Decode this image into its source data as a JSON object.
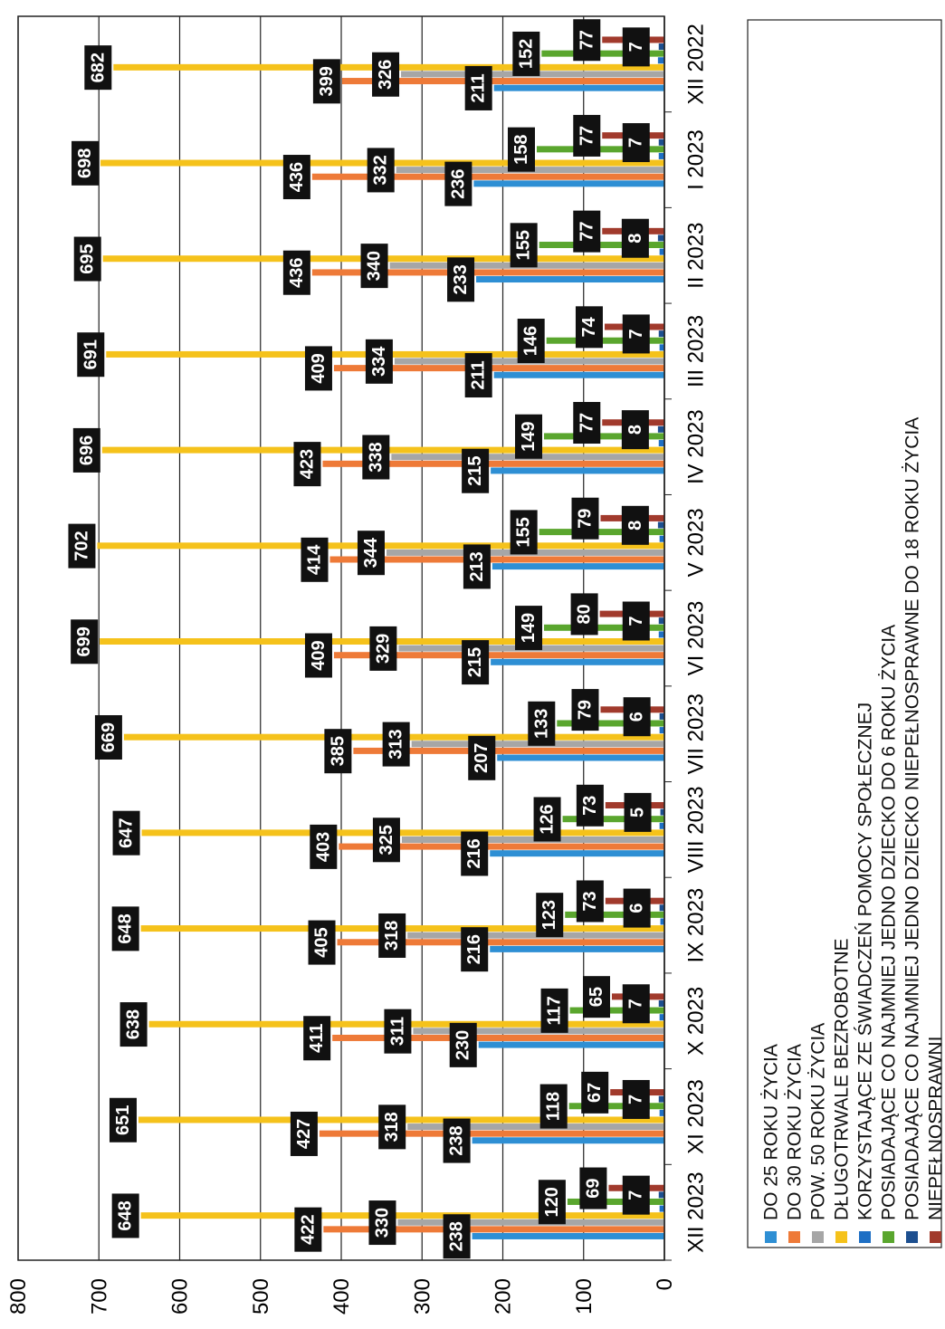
{
  "chart_data": {
    "type": "bar",
    "orientation": "horizontal-bars-rotated-page",
    "title": "",
    "xlabel": "",
    "ylabel": "",
    "ylim": [
      0,
      800
    ],
    "yticks": [
      0,
      100,
      200,
      300,
      400,
      500,
      600,
      700,
      800
    ],
    "grid": true,
    "legend_position": "bottom",
    "categories": [
      "XII 2022",
      "I 2023",
      "II 2023",
      "III 2023",
      "IV 2023",
      "V 2023",
      "VI 2023",
      "VII 2023",
      "VIII 2023",
      "IX 2023",
      "X 2023",
      "XI 2023",
      "XII 2023"
    ],
    "series": [
      {
        "name": "DO 25 ROKU ŻYCIA",
        "color": "#2e8fd4",
        "values": [
          211,
          236,
          233,
          211,
          215,
          213,
          215,
          207,
          216,
          216,
          230,
          238,
          238
        ]
      },
      {
        "name": "DO 30 ROKU ŻYCIA",
        "color": "#ee7a38",
        "values": [
          399,
          436,
          436,
          409,
          423,
          414,
          409,
          385,
          403,
          405,
          411,
          427,
          422
        ]
      },
      {
        "name": "POW. 50 ROKU ŻYCIA",
        "color": "#a6a6a6",
        "values": [
          326,
          332,
          340,
          334,
          338,
          344,
          329,
          313,
          325,
          318,
          311,
          318,
          330
        ]
      },
      {
        "name": "DŁUGOTRWALE BEZROBOTNE",
        "color": "#f5c21b",
        "values": [
          682,
          698,
          695,
          691,
          696,
          702,
          699,
          669,
          647,
          648,
          638,
          651,
          648
        ]
      },
      {
        "name": "KORZYSTAJĄCE ZE ŚWIADCZEŃ POMOCY SPOŁECZNEJ",
        "color": "#1e6fc4",
        "values": [
          8,
          7,
          6,
          6,
          7,
          6,
          7,
          6,
          6,
          5,
          6,
          6,
          6
        ]
      },
      {
        "name": "POSIADAJĄCE CO NAJMNIEJ JEDNO DZIECKO DO 6 ROKU ŻYCIA",
        "color": "#5aa62e",
        "values": [
          152,
          158,
          155,
          146,
          149,
          155,
          149,
          133,
          126,
          123,
          117,
          118,
          120
        ]
      },
      {
        "name": "POSIADAJĄCE CO NAJMNIEJ JEDNO DZIECKO NIEPEŁNOSPRAWNE DO 18 ROKU ŻYCIA",
        "color": "#1d4f8f",
        "values": [
          7,
          7,
          8,
          7,
          8,
          8,
          7,
          6,
          5,
          6,
          7,
          7,
          7
        ]
      },
      {
        "name": "NIEPEŁNOSPRAWNI",
        "color": "#a13a2c",
        "values": [
          77,
          77,
          77,
          74,
          77,
          79,
          80,
          79,
          73,
          73,
          65,
          67,
          69
        ]
      }
    ],
    "data_labels": {
      "shown_for_series": [
        "DO 25 ROKU ŻYCIA",
        "DO 30 ROKU ŻYCIA",
        "POW. 50 ROKU ŻYCIA",
        "DŁUGOTRWALE BEZROBOTNE",
        "POSIADAJĄCE CO NAJMNIEJ JEDNO DZIECKO DO 6 ROKU ŻYCIA",
        "POSIADAJĄCE CO NAJMNIEJ JEDNO DZIECKO NIEPEŁNOSPRAWNE DO 18 ROKU ŻYCIA",
        "NIEPEŁNOSPRAWNI"
      ]
    }
  }
}
